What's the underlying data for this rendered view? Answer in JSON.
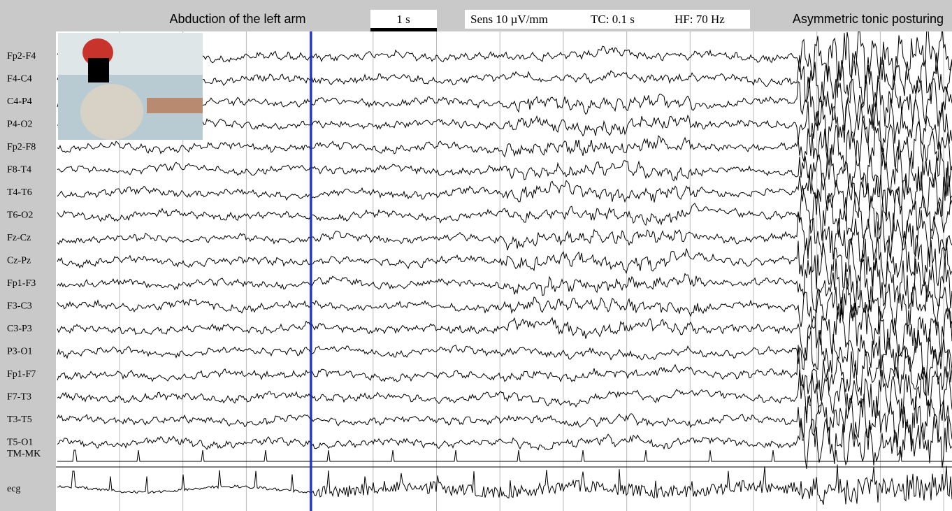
{
  "header": {
    "event_left": "Abduction of the left arm",
    "timescale": "1 s",
    "settings": [
      "Sens 10 µV/mm",
      "TC: 0.1 s",
      "HF: 70 Hz"
    ],
    "event_right": "Asymmetric tonic posturing"
  },
  "channels": [
    "Fp2-F4",
    "F4-C4",
    "C4-P4",
    "P4-O2",
    "Fp2-F8",
    "F8-T4",
    "T4-T6",
    "T6-O2",
    "Fz-Cz",
    "Cz-Pz",
    "Fp1-F3",
    "F3-C3",
    "C3-P3",
    "P3-O1",
    "Fp1-F7",
    "F7-T3",
    "T3-T5",
    "T5-O1",
    "TM-MK",
    "ecg"
  ]
}
